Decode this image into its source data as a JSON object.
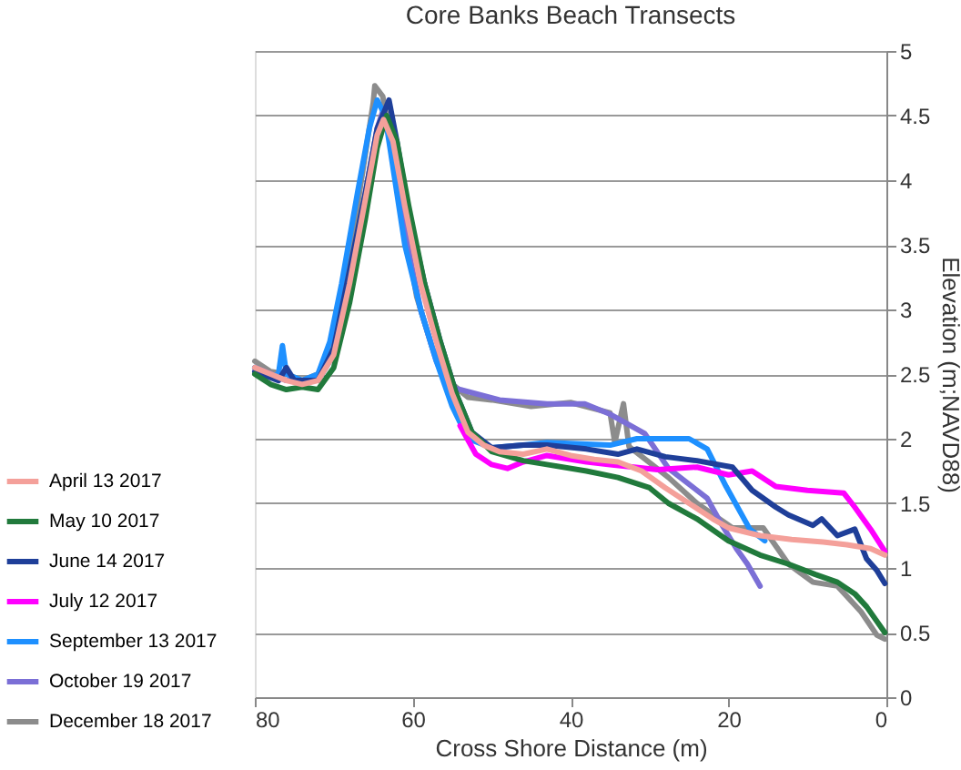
{
  "chart_data": {
    "type": "line",
    "title": "Core Banks Beach Transects",
    "xlabel": "Cross Shore Distance (m)",
    "ylabel": "Elevation (m;NAVD88)",
    "xlim": [
      80,
      0
    ],
    "xticks": [
      80,
      60,
      40,
      20,
      0
    ],
    "ylim": [
      0,
      5
    ],
    "yticks": [
      0,
      0.5,
      1,
      1.5,
      2,
      2.5,
      3,
      3.5,
      4,
      4.5,
      5
    ],
    "grid": "y",
    "legend": "left",
    "marker": "none",
    "line_style": "solid",
    "series": [
      {
        "name": "April 13 2017",
        "color": "#f4a09a",
        "x": [
          80,
          78,
          76,
          74,
          72,
          70,
          68,
          66,
          64.5,
          63.7,
          62.5,
          61,
          59,
          57,
          55,
          53,
          51,
          49,
          46,
          43,
          40,
          37,
          34,
          31,
          28,
          25,
          22,
          20,
          16,
          12,
          8,
          5,
          2,
          0.2
        ],
        "values": [
          2.55,
          2.5,
          2.45,
          2.42,
          2.45,
          2.65,
          3.2,
          3.85,
          4.35,
          4.47,
          4.3,
          3.8,
          3.2,
          2.75,
          2.35,
          2.05,
          1.95,
          1.9,
          1.88,
          1.92,
          1.87,
          1.84,
          1.82,
          1.75,
          1.62,
          1.5,
          1.38,
          1.31,
          1.25,
          1.22,
          1.2,
          1.18,
          1.15,
          1.1
        ]
      },
      {
        "name": "May 10 2017",
        "color": "#217a3c",
        "x": [
          80,
          78,
          76,
          74,
          72,
          70,
          68,
          66,
          64.5,
          63.3,
          62,
          60.5,
          58.5,
          56.5,
          54.5,
          52.5,
          50,
          46,
          43,
          38,
          34,
          30,
          27.6,
          24,
          20,
          16,
          12.4,
          9,
          6.2,
          4,
          2.5,
          0.2
        ],
        "values": [
          2.5,
          2.42,
          2.38,
          2.4,
          2.38,
          2.55,
          3.05,
          3.7,
          4.25,
          4.5,
          4.3,
          3.8,
          3.2,
          2.75,
          2.35,
          2.05,
          1.9,
          1.83,
          1.8,
          1.75,
          1.7,
          1.62,
          1.5,
          1.38,
          1.21,
          1.1,
          1.03,
          0.95,
          0.89,
          0.8,
          0.7,
          0.5
        ]
      },
      {
        "name": "June 14 2017",
        "color": "#1f3f99",
        "x": [
          80,
          77,
          76,
          75,
          72,
          70,
          68,
          66,
          64.5,
          63,
          62,
          60.5,
          58.5,
          56.5,
          54.5,
          52.5,
          50,
          46,
          43,
          38,
          34,
          31.6,
          28,
          24,
          19.5,
          17,
          14,
          12.4,
          9.3,
          8.2,
          6.2,
          4,
          2.5,
          1.2,
          0.2
        ],
        "values": [
          2.52,
          2.45,
          2.55,
          2.45,
          2.45,
          2.7,
          3.3,
          3.9,
          4.4,
          4.62,
          4.3,
          3.75,
          3.2,
          2.75,
          2.35,
          2.05,
          1.93,
          1.95,
          1.95,
          1.92,
          1.88,
          1.92,
          1.86,
          1.83,
          1.78,
          1.6,
          1.47,
          1.41,
          1.33,
          1.38,
          1.25,
          1.3,
          1.07,
          0.98,
          0.88
        ]
      },
      {
        "name": "July 12 2017",
        "color": "#ff00ff",
        "x": [
          54,
          52,
          50,
          48,
          46,
          43,
          38,
          35,
          29,
          24,
          20,
          17,
          14,
          10,
          5.4,
          4,
          2,
          0.2
        ],
        "values": [
          2.1,
          1.88,
          1.8,
          1.77,
          1.82,
          1.87,
          1.82,
          1.8,
          1.76,
          1.78,
          1.72,
          1.75,
          1.63,
          1.6,
          1.58,
          1.47,
          1.3,
          1.13
        ]
      },
      {
        "name": "September 13 2017",
        "color": "#1e90ff",
        "x": [
          80,
          78,
          77,
          76.5,
          76,
          74,
          72,
          70.5,
          69,
          67,
          65.5,
          64.5,
          63.5,
          62.5,
          61,
          59,
          57,
          55,
          53,
          50,
          46,
          43,
          35,
          31.6,
          25,
          22.7,
          20.3,
          17.3,
          15.4
        ],
        "values": [
          2.55,
          2.48,
          2.5,
          2.72,
          2.5,
          2.45,
          2.5,
          2.75,
          3.2,
          3.9,
          4.4,
          4.62,
          4.5,
          4.1,
          3.5,
          3.0,
          2.6,
          2.25,
          2.0,
          1.93,
          1.95,
          1.97,
          1.95,
          2.0,
          2.0,
          1.92,
          1.63,
          1.3,
          1.21
        ]
      },
      {
        "name": "October 19 2017",
        "color": "#7b6fd6",
        "x": [
          80,
          76,
          72,
          70,
          68,
          66,
          64.5,
          63.7,
          62.5,
          61,
          59,
          57,
          55.5,
          54.6,
          49,
          43,
          38.2,
          35,
          30.6,
          27.6,
          22.7,
          21,
          19,
          17.6,
          16
        ],
        "values": [
          2.55,
          2.45,
          2.45,
          2.65,
          3.2,
          3.9,
          4.4,
          4.55,
          4.2,
          3.6,
          3.0,
          2.6,
          2.4,
          2.39,
          2.3,
          2.27,
          2.27,
          2.19,
          2.04,
          1.77,
          1.54,
          1.35,
          1.15,
          1.03,
          0.86
        ]
      },
      {
        "name": "December 18 2017",
        "color": "#8c8c8c",
        "x": [
          80,
          78,
          76,
          74,
          72,
          70,
          68,
          66,
          65,
          64.8,
          63.8,
          63,
          61.5,
          59.5,
          57.5,
          55.5,
          53,
          50,
          45,
          40,
          35,
          34.4,
          33.3,
          32.6,
          27.6,
          24,
          19.5,
          15.6,
          12.4,
          9.3,
          6.2,
          3.2,
          1.2,
          0.2
        ],
        "values": [
          2.6,
          2.52,
          2.5,
          2.45,
          2.5,
          2.75,
          3.4,
          4.2,
          4.6,
          4.73,
          4.65,
          4.4,
          3.8,
          3.1,
          2.7,
          2.45,
          2.32,
          2.3,
          2.25,
          2.28,
          2.2,
          1.97,
          2.27,
          1.94,
          1.7,
          1.5,
          1.31,
          1.31,
          1.03,
          0.89,
          0.86,
          0.66,
          0.48,
          0.45
        ]
      }
    ]
  }
}
